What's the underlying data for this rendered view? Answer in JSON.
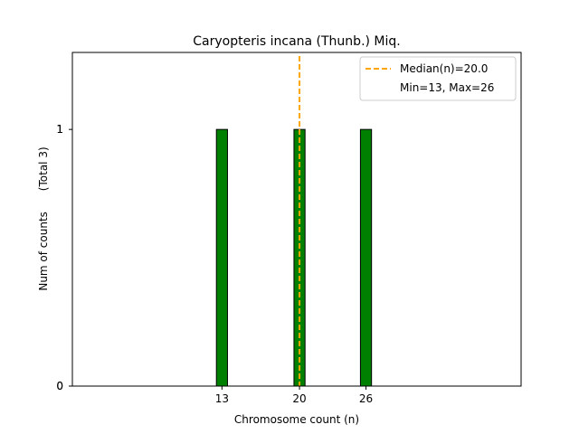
{
  "chart_data": {
    "type": "bar",
    "title": "Caryopteris incana (Thunb.) Miq.",
    "xlabel": "Chromosome count (n)",
    "ylabel": "Num of counts      (Total 3)",
    "x": [
      13,
      20,
      26
    ],
    "values": [
      1,
      1,
      1
    ],
    "bar_width": 1,
    "xticks": [
      13,
      20,
      26
    ],
    "yticks": [
      0,
      1
    ],
    "xlim": [
      -0.5,
      40
    ],
    "ylim": [
      0,
      1.3
    ],
    "median": 20.0,
    "grid": false,
    "legend_position": "top-right",
    "legend": [
      {
        "label": "Median(n)=20.0",
        "style": "dashed-line"
      },
      {
        "label": "Min=13, Max=26",
        "style": "none"
      }
    ],
    "colors": {
      "bar_fill": "#008000",
      "bar_edge": "#000000",
      "median_line": "#FFA500",
      "axis": "#000000"
    }
  }
}
